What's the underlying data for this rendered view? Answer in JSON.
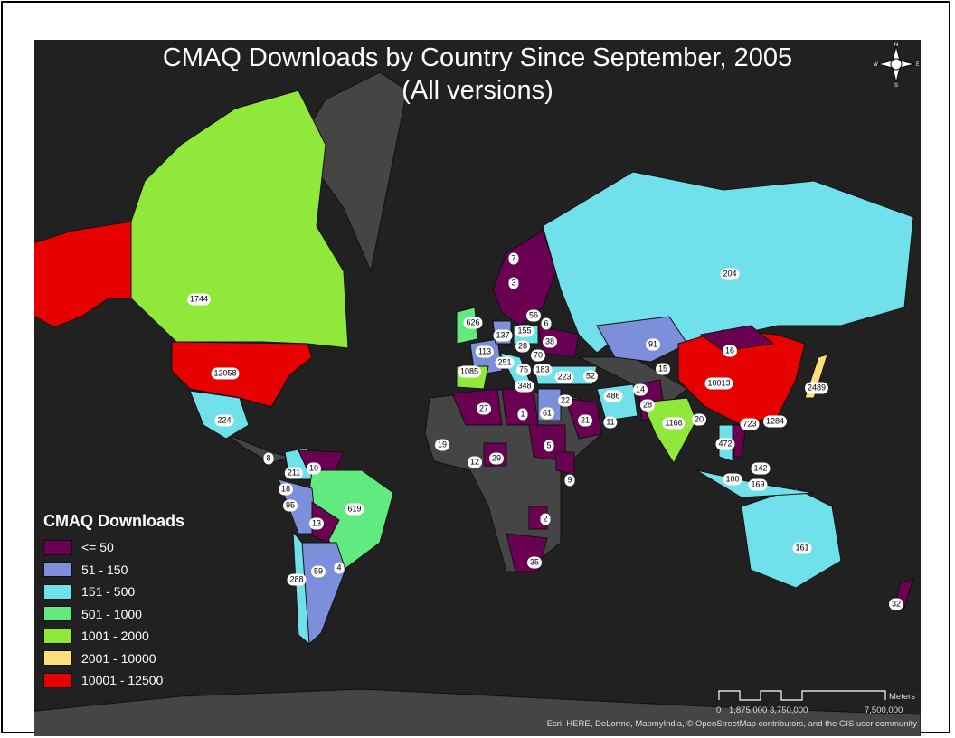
{
  "title_line1": "CMAQ Downloads by Country Since September, 2005",
  "title_line2": "(All versions)",
  "legend": {
    "title": "CMAQ Downloads",
    "classes": [
      {
        "label": "<= 50",
        "color": "#6a0052"
      },
      {
        "label": "51 - 150",
        "color": "#7d8edb"
      },
      {
        "label": "151 - 500",
        "color": "#70e0ea"
      },
      {
        "label": "501 - 1000",
        "color": "#60ea80"
      },
      {
        "label": "1001 - 2000",
        "color": "#8fe83a"
      },
      {
        "label": "2001 - 10000",
        "color": "#ffdf7a"
      },
      {
        "label": "10001 - 12500",
        "color": "#e60000"
      }
    ]
  },
  "no_data_color": "#454545",
  "ocean_color": "#212121",
  "country_labels": [
    "1744",
    "12058",
    "224",
    "8",
    "211",
    "10",
    "18",
    "95",
    "619",
    "13",
    "4",
    "59",
    "288",
    "7",
    "3",
    "626",
    "56",
    "155",
    "137",
    "6",
    "113",
    "28",
    "38",
    "251",
    "70",
    "183",
    "75",
    "1085",
    "348",
    "223",
    "52",
    "27",
    "1",
    "61",
    "22",
    "21",
    "11",
    "5",
    "19",
    "12",
    "29",
    "9",
    "2",
    "35",
    "204",
    "91",
    "16",
    "15",
    "10013",
    "486",
    "14",
    "28",
    "1166",
    "20",
    "723",
    "1284",
    "2489",
    "472",
    "142",
    "100",
    "169",
    "161",
    "32"
  ],
  "scale_bar": {
    "unit": "Meters",
    "ticks": [
      "0",
      "1,875,000",
      "3,750,000",
      "7,500,000"
    ]
  },
  "attribution": "Esri, HERE, DeLorme, MapmyIndia, © OpenStreetMap contributors, and the GIS user community",
  "compass": {
    "n": "N",
    "s": "S",
    "e": "E",
    "w": "W"
  }
}
